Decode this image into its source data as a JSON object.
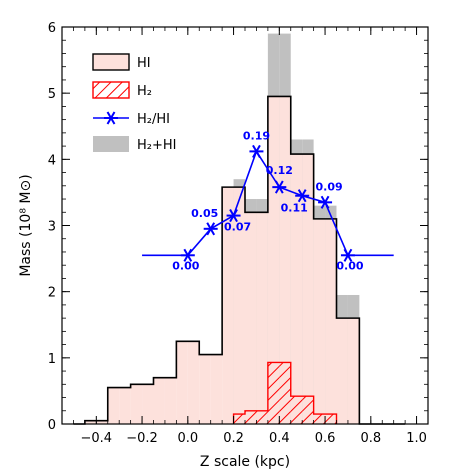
{
  "chart_data": {
    "type": "bar",
    "xlabel": "Z scale (kpc)",
    "ylabel": "Mass (10⁸ M⊙)",
    "xlim": [
      -0.55,
      1.05
    ],
    "ylim": [
      0,
      6
    ],
    "xticks": [
      -0.4,
      -0.2,
      0.0,
      0.2,
      0.4,
      0.6,
      0.8,
      1.0
    ],
    "xtick_labels": [
      "−0.4",
      "−0.2",
      "0.0",
      "0.2",
      "0.4",
      "0.6",
      "0.8",
      "1.0"
    ],
    "yticks": [
      0,
      1,
      2,
      3,
      4,
      5,
      6
    ],
    "ytick_labels": [
      "0",
      "1",
      "2",
      "3",
      "4",
      "5",
      "6"
    ],
    "bin_edges": [
      -0.5,
      -0.45,
      -0.4,
      -0.35,
      -0.3,
      -0.25,
      -0.2,
      -0.15,
      -0.1,
      -0.05,
      0.0,
      0.05,
      0.1,
      0.15,
      0.2,
      0.25,
      0.3,
      0.35,
      0.4,
      0.45,
      0.5,
      0.55,
      0.6,
      0.65,
      0.7,
      0.75,
      0.8,
      0.85,
      0.9
    ],
    "series": [
      {
        "name": "HI",
        "values": [
          0.0,
          0.05,
          0.05,
          0.55,
          0.55,
          0.6,
          0.6,
          0.7,
          0.7,
          1.25,
          1.25,
          1.05,
          1.05,
          3.58,
          3.58,
          3.2,
          3.2,
          4.95,
          4.95,
          4.08,
          4.08,
          3.1,
          3.1,
          1.6,
          1.6,
          0.0,
          0.0,
          0.0,
          0.0
        ],
        "color": "#fde1dc"
      },
      {
        "name": "H₂",
        "values": [
          0,
          0,
          0,
          0,
          0,
          0,
          0,
          0,
          0,
          0,
          0,
          0,
          0,
          0,
          0.15,
          0.2,
          0.2,
          0.93,
          0.93,
          0.42,
          0.42,
          0.15,
          0.15,
          0,
          0,
          0,
          0,
          0,
          0
        ],
        "color": "#ff0000"
      },
      {
        "name": "H₂+HI",
        "values": [
          0,
          0,
          0,
          0,
          0,
          0,
          0,
          0,
          0,
          0,
          0,
          0,
          0,
          0,
          3.7,
          3.4,
          3.4,
          5.9,
          5.9,
          4.3,
          4.3,
          3.3,
          3.3,
          1.95,
          1.95,
          0,
          0,
          0,
          0
        ],
        "color": "#c0c0c0"
      },
      {
        "name": "H₂/HI",
        "x": [
          0.0,
          0.1,
          0.2,
          0.3,
          0.4,
          0.5,
          0.6,
          0.7
        ],
        "y": [
          2.55,
          2.95,
          3.15,
          4.12,
          3.58,
          3.45,
          3.35,
          2.55
        ],
        "labels": [
          "0.00",
          "0.05",
          "0.07",
          "0.19",
          "0.12",
          "0.11",
          "0.09",
          "0.00"
        ],
        "line_extent": [
          -0.2,
          0.9
        ],
        "color": "#0000ff"
      }
    ],
    "legend": {
      "position": "top-left",
      "entries": [
        "HI",
        "H₂",
        "H₂/HI",
        "H₂+HI"
      ]
    }
  }
}
